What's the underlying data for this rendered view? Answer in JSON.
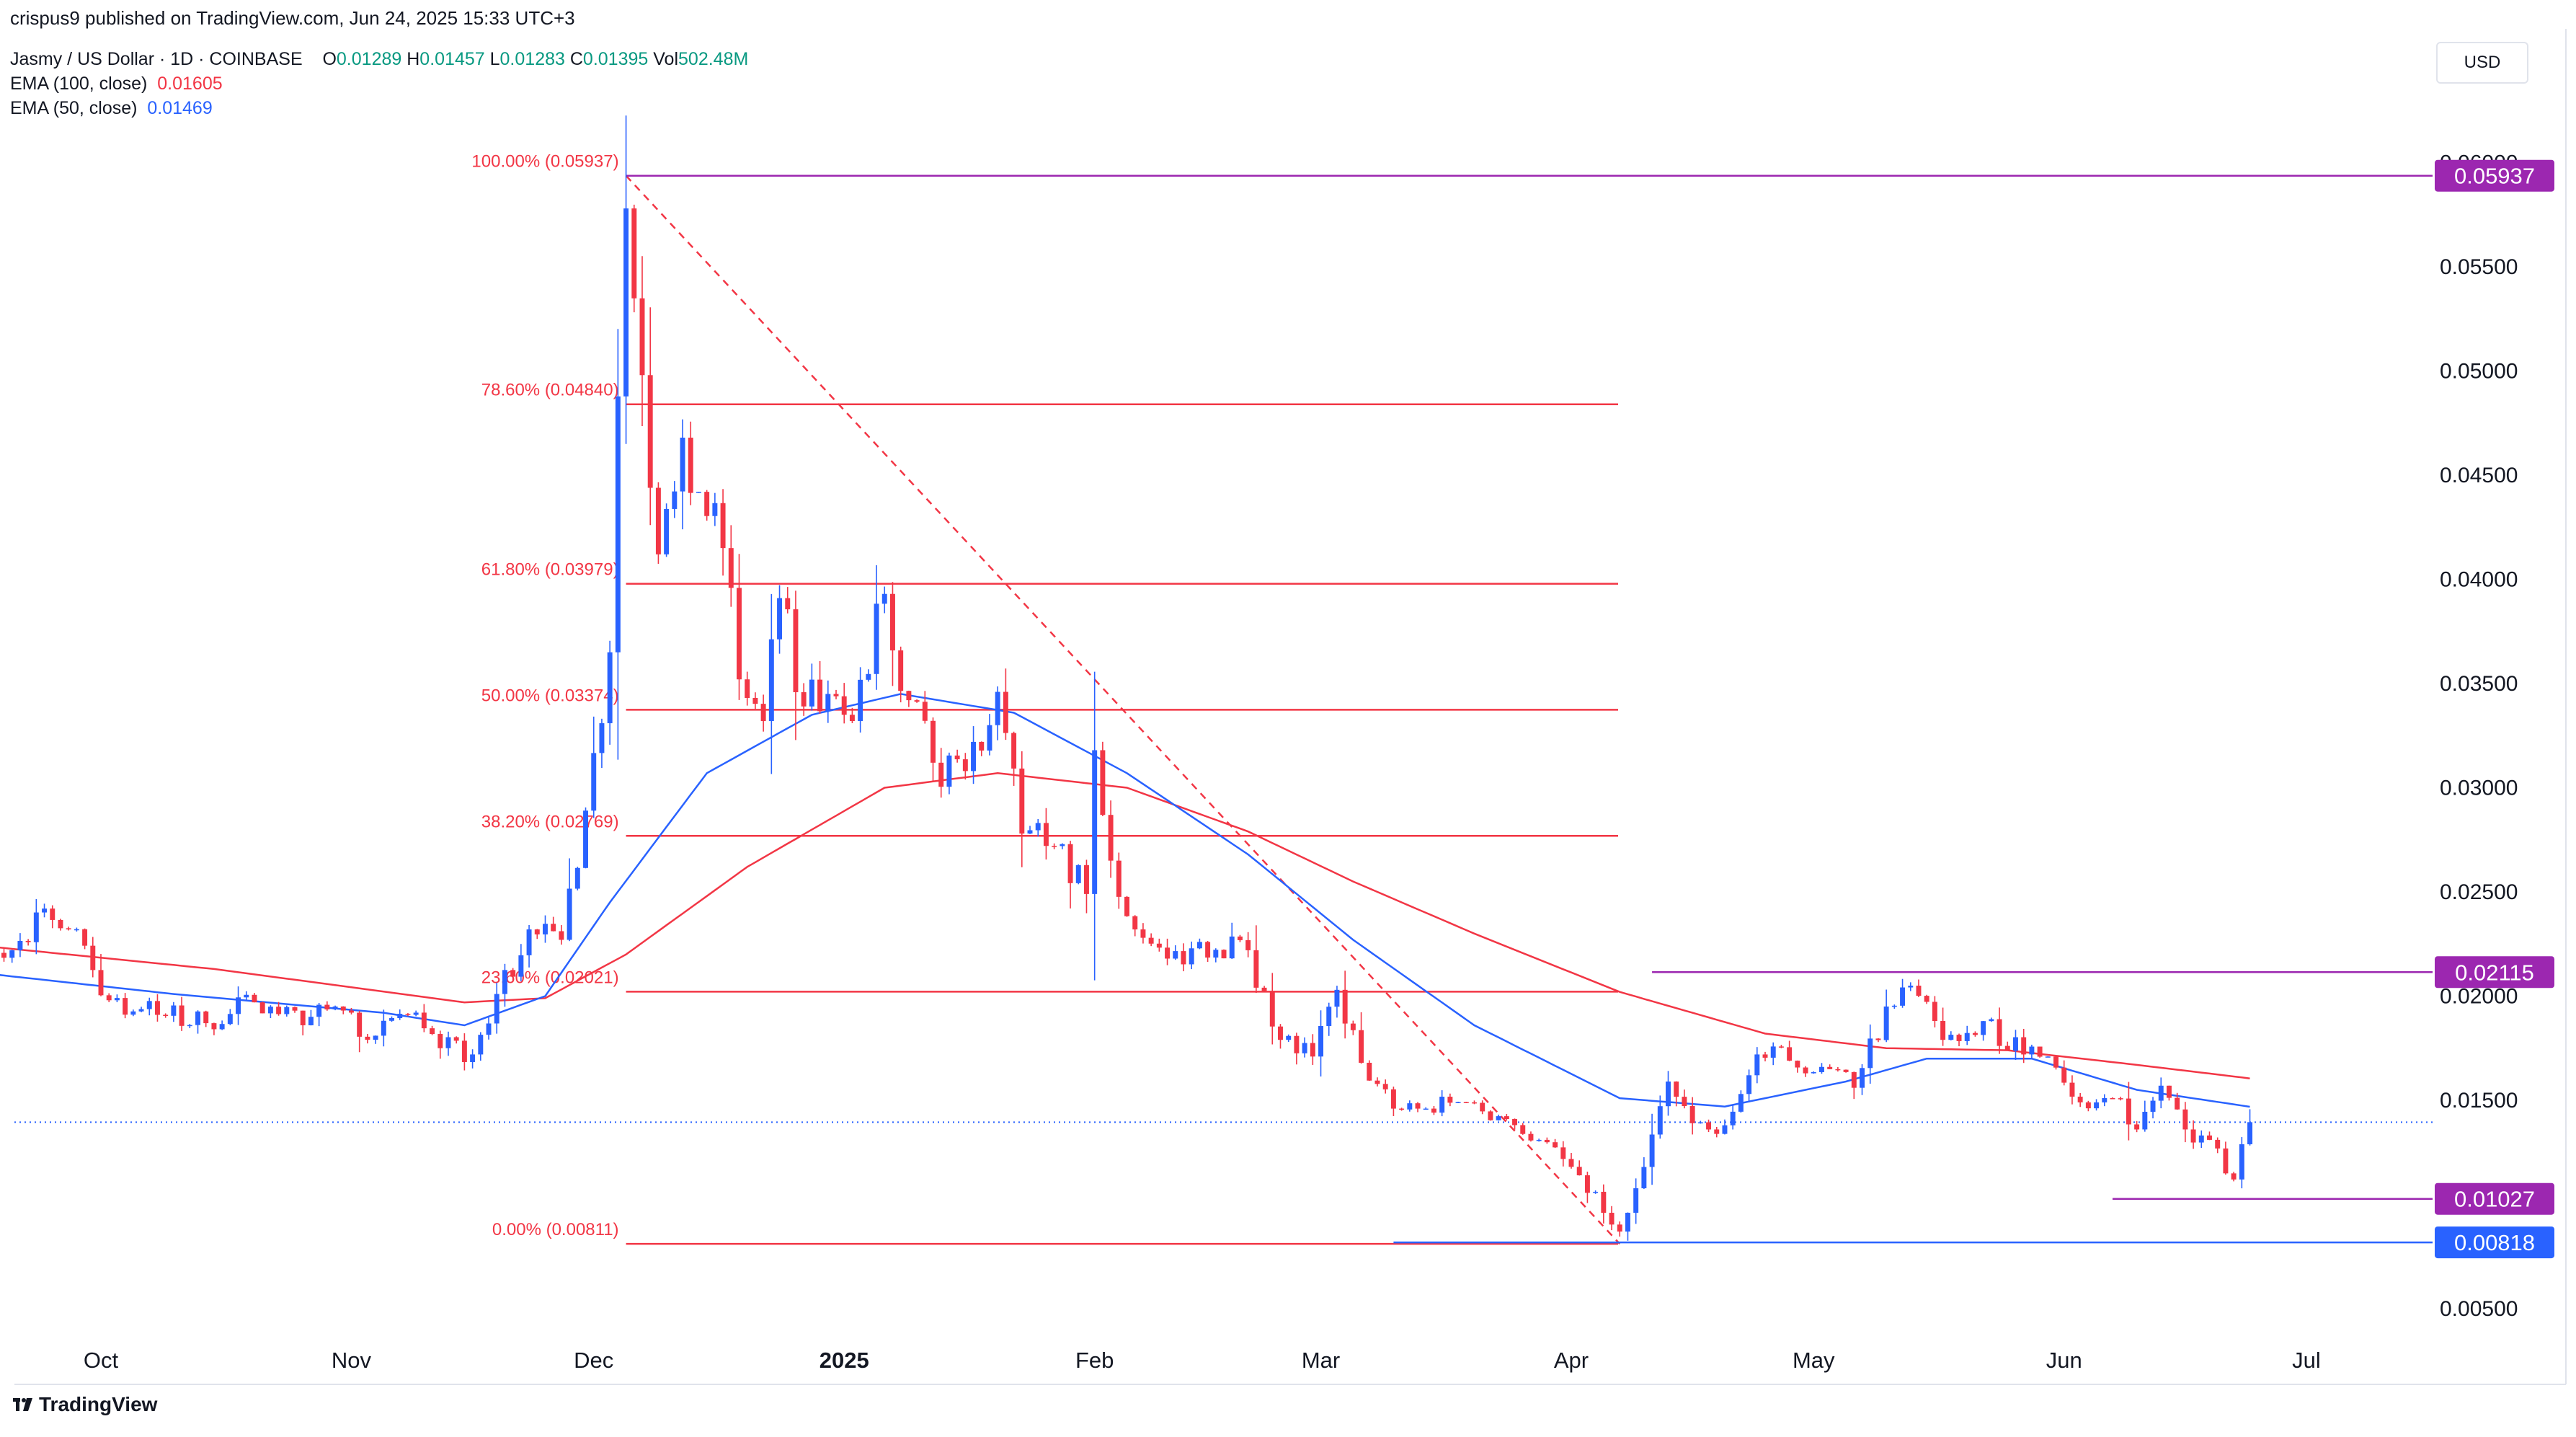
{
  "header": {
    "published": "crispus9 published on TradingView.com, Jun 24, 2025 15:33 UTC+3",
    "symbol": "Jasmy / US Dollar · 1D · COINBASE",
    "ohlc": {
      "o_label": "O",
      "o": "0.01289",
      "h_label": "H",
      "h": "0.01457",
      "l_label": "L",
      "l": "0.01283",
      "c_label": "C",
      "c": "0.01395",
      "v_label": "Vol",
      "v": "502.48",
      "v_unit": "M"
    },
    "ema100_label": "EMA (100, close)",
    "ema100_value": "0.01605",
    "ema50_label": "EMA (50, close)",
    "ema50_value": "0.01469"
  },
  "currency_button": "USD",
  "footer": {
    "brand": "TradingView",
    "logo_icon": "tradingview-logo-icon"
  },
  "colors": {
    "up": "#2962ff",
    "down": "#f23645",
    "ema100": "#f23645",
    "ema50": "#2962ff",
    "fib": "#f23645",
    "purple": "#9c27b0",
    "blue_tag": "#2962ff",
    "ohlc": "#089981"
  },
  "chart_data": {
    "type": "candlestick",
    "title": "",
    "ylim": [
      0.0035,
      0.0625
    ],
    "y_ticks": [
      "0.00500",
      "0.01500",
      "0.02000",
      "0.02500",
      "0.03000",
      "0.03500",
      "0.04000",
      "0.04500",
      "0.05000",
      "0.05500"
    ],
    "x_ticks": [
      "Oct",
      "Nov",
      "Dec",
      "2025",
      "Feb",
      "Mar",
      "Apr",
      "May",
      "Jun",
      "Jul"
    ],
    "x_tick_dates": [
      "2024-10-01",
      "2024-11-01",
      "2024-12-01",
      "2025-01-01",
      "2025-02-01",
      "2025-03-01",
      "2025-04-01",
      "2025-05-01",
      "2025-06-01",
      "2025-07-01"
    ],
    "fib_levels": [
      {
        "label": "100.00% (0.05937)",
        "value": 0.05937
      },
      {
        "label": "78.60% (0.04840)",
        "value": 0.0484
      },
      {
        "label": "61.80% (0.03979)",
        "value": 0.03979
      },
      {
        "label": "50.00% (0.03374)",
        "value": 0.03374
      },
      {
        "label": "38.20% (0.02769)",
        "value": 0.02769
      },
      {
        "label": "23.60% (0.02021)",
        "value": 0.02021
      },
      {
        "label": "0.00% (0.00811)",
        "value": 0.00811
      }
    ],
    "fib_range": {
      "start": "2024-12-05",
      "end": "2025-04-09"
    },
    "trend_line": {
      "from": {
        "date": "2024-12-05",
        "value": 0.05937
      },
      "to": {
        "date": "2025-04-07",
        "value": 0.00811
      }
    },
    "horizontal_lines": [
      {
        "label": "0.05937",
        "value": 0.05937,
        "color": "purple",
        "from": "2024-12-05"
      },
      {
        "label": "0.02115",
        "value": 0.02115,
        "color": "purple",
        "from": "2025-04-11"
      },
      {
        "label": "0.01027",
        "value": 0.01027,
        "color": "purple",
        "from": "2025-06-07"
      },
      {
        "label": "0.00818",
        "value": 0.00818,
        "color": "blue",
        "from": "2025-03-10"
      }
    ],
    "last_price": 0.01395,
    "anchors": [
      [
        "2024-09-14",
        0.0212
      ],
      [
        "2024-09-20",
        0.0222
      ],
      [
        "2024-09-24",
        0.0242
      ],
      [
        "2024-09-27",
        0.0232
      ],
      [
        "2024-10-02",
        0.0198
      ],
      [
        "2024-10-08",
        0.0191
      ],
      [
        "2024-10-14",
        0.0187
      ],
      [
        "2024-10-20",
        0.0197
      ],
      [
        "2024-10-26",
        0.0186
      ],
      [
        "2024-10-30",
        0.0195
      ],
      [
        "2024-11-04",
        0.0181
      ],
      [
        "2024-11-08",
        0.0191
      ],
      [
        "2024-11-12",
        0.0175
      ],
      [
        "2024-11-16",
        0.0172
      ],
      [
        "2024-11-19",
        0.0201
      ],
      [
        "2024-11-23",
        0.0232
      ],
      [
        "2024-11-27",
        0.0227
      ],
      [
        "2024-11-30",
        0.0289
      ],
      [
        "2024-12-03",
        0.0365
      ],
      [
        "2024-12-05",
        0.0578
      ],
      [
        "2024-12-07",
        0.0498
      ],
      [
        "2024-12-09",
        0.0412
      ],
      [
        "2024-12-12",
        0.0468
      ],
      [
        "2024-12-14",
        0.0442
      ],
      [
        "2024-12-17",
        0.0415
      ],
      [
        "2024-12-19",
        0.0352
      ],
      [
        "2024-12-22",
        0.0332
      ],
      [
        "2024-12-24",
        0.0391
      ],
      [
        "2024-12-27",
        0.0339
      ],
      [
        "2024-12-30",
        0.0345
      ],
      [
        "2025-01-02",
        0.0332
      ],
      [
        "2025-01-06",
        0.0393
      ],
      [
        "2025-01-09",
        0.0342
      ],
      [
        "2025-01-12",
        0.0312
      ],
      [
        "2025-01-16",
        0.0308
      ],
      [
        "2025-01-20",
        0.0346
      ],
      [
        "2025-01-23",
        0.0278
      ],
      [
        "2025-01-27",
        0.0272
      ],
      [
        "2025-01-31",
        0.0249
      ],
      [
        "2025-02-01",
        0.0318
      ],
      [
        "2025-02-03",
        0.0265
      ],
      [
        "2025-02-06",
        0.0232
      ],
      [
        "2025-02-10",
        0.0218
      ],
      [
        "2025-02-14",
        0.0226
      ],
      [
        "2025-02-20",
        0.0222
      ],
      [
        "2025-02-24",
        0.0179
      ],
      [
        "2025-02-28",
        0.0171
      ],
      [
        "2025-03-03",
        0.0203
      ],
      [
        "2025-03-06",
        0.0168
      ],
      [
        "2025-03-10",
        0.0146
      ],
      [
        "2025-03-14",
        0.0146
      ],
      [
        "2025-03-19",
        0.0149
      ],
      [
        "2025-03-24",
        0.0141
      ],
      [
        "2025-03-28",
        0.0131
      ],
      [
        "2025-04-02",
        0.0114
      ],
      [
        "2025-04-07",
        0.0087
      ],
      [
        "2025-04-10",
        0.0118
      ],
      [
        "2025-04-13",
        0.0159
      ],
      [
        "2025-04-16",
        0.0139
      ],
      [
        "2025-04-20",
        0.0138
      ],
      [
        "2025-04-24",
        0.0172
      ],
      [
        "2025-04-28",
        0.0169
      ],
      [
        "2025-05-02",
        0.0166
      ],
      [
        "2025-05-06",
        0.0156
      ],
      [
        "2025-05-10",
        0.0195
      ],
      [
        "2025-05-13",
        0.0205
      ],
      [
        "2025-05-17",
        0.0179
      ],
      [
        "2025-05-22",
        0.0188
      ],
      [
        "2025-05-27",
        0.0172
      ],
      [
        "2025-05-30",
        0.0171
      ],
      [
        "2025-06-03",
        0.0149
      ],
      [
        "2025-06-07",
        0.0151
      ],
      [
        "2025-06-10",
        0.0136
      ],
      [
        "2025-06-13",
        0.0157
      ],
      [
        "2025-06-16",
        0.0136
      ],
      [
        "2025-06-19",
        0.0131
      ],
      [
        "2025-06-22",
        0.0112
      ],
      [
        "2025-06-23",
        0.01289
      ],
      [
        "2025-06-24",
        0.01395
      ]
    ],
    "last_candle": {
      "date": "2025-06-24",
      "open": 0.01289,
      "high": 0.01457,
      "low": 0.01283,
      "close": 0.01395
    },
    "ema100_anchors": [
      [
        "2024-09-14",
        0.0225
      ],
      [
        "2024-10-15",
        0.0213
      ],
      [
        "2024-11-15",
        0.0197
      ],
      [
        "2024-11-25",
        0.0199
      ],
      [
        "2024-12-05",
        0.022
      ],
      [
        "2024-12-20",
        0.0262
      ],
      [
        "2025-01-06",
        0.03
      ],
      [
        "2025-01-20",
        0.0307
      ],
      [
        "2025-02-05",
        0.03
      ],
      [
        "2025-02-20",
        0.0279
      ],
      [
        "2025-03-05",
        0.0255
      ],
      [
        "2025-03-20",
        0.023
      ],
      [
        "2025-04-07",
        0.0202
      ],
      [
        "2025-04-25",
        0.0182
      ],
      [
        "2025-05-10",
        0.0175
      ],
      [
        "2025-05-25",
        0.0174
      ],
      [
        "2025-06-10",
        0.0167
      ],
      [
        "2025-06-24",
        0.01605
      ]
    ],
    "ema50_anchors": [
      [
        "2024-09-14",
        0.0212
      ],
      [
        "2024-10-10",
        0.0201
      ],
      [
        "2024-11-05",
        0.0192
      ],
      [
        "2024-11-15",
        0.0186
      ],
      [
        "2024-11-25",
        0.02
      ],
      [
        "2024-12-03",
        0.0245
      ],
      [
        "2024-12-15",
        0.0307
      ],
      [
        "2024-12-28",
        0.0335
      ],
      [
        "2025-01-08",
        0.0345
      ],
      [
        "2025-01-22",
        0.0336
      ],
      [
        "2025-02-05",
        0.0307
      ],
      [
        "2025-02-20",
        0.0268
      ],
      [
        "2025-03-05",
        0.0227
      ],
      [
        "2025-03-20",
        0.0186
      ],
      [
        "2025-04-07",
        0.0151
      ],
      [
        "2025-04-20",
        0.0147
      ],
      [
        "2025-05-05",
        0.0159
      ],
      [
        "2025-05-15",
        0.017
      ],
      [
        "2025-05-28",
        0.017
      ],
      [
        "2025-06-10",
        0.0155
      ],
      [
        "2025-06-24",
        0.01469
      ]
    ]
  }
}
